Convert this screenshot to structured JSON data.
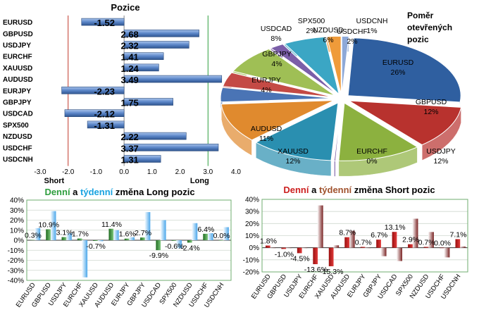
{
  "chart_data": [
    {
      "type": "bar",
      "orientation": "horizontal",
      "title": "Pozice",
      "categories": [
        "EURUSD",
        "GBPUSD",
        "USDJPY",
        "EURCHF",
        "XAUUSD",
        "AUDUSD",
        "EURJPY",
        "GBPJPY",
        "USDCAD",
        "SPX500",
        "NZDUSD",
        "USDCHF",
        "USDCNH"
      ],
      "values": [
        -1.52,
        2.68,
        2.32,
        1.41,
        1.24,
        3.49,
        -2.23,
        1.75,
        -2.12,
        -1.31,
        2.22,
        3.37,
        1.31
      ],
      "value_labels": [
        "-1.52",
        "2.68",
        "2.32",
        "1.41",
        "1.24",
        "3.49",
        "-2.23",
        "1.75",
        "-2.12",
        "-1.31",
        "2.22",
        "3.37",
        "1.31"
      ],
      "xlim": [
        -3.0,
        4.0
      ],
      "x_ticks": [
        "-3.0",
        "-2.0",
        "-1.0",
        "0.0",
        "1.0",
        "2.0",
        "3.0",
        "4.0"
      ],
      "short_label": "Short",
      "long_label": "Long",
      "colors": {
        "bar": "#5b86c8",
        "short_line": "#c0392b",
        "long_line": "#2e9e3e"
      }
    },
    {
      "type": "pie",
      "title_lines": [
        "Poměr",
        "otevřených",
        "pozic"
      ],
      "slices": [
        {
          "label": "EURUSD",
          "value": 26,
          "text": "26%",
          "color": "#2f5fa0"
        },
        {
          "label": "GBPUSD",
          "value": 12,
          "text": "12%",
          "color": "#b8322e"
        },
        {
          "label": "USDJPY",
          "value": 12,
          "text": "12%",
          "color": "#8cb13f"
        },
        {
          "label": "EURCHF",
          "value": 0,
          "text": "0%",
          "color": "#6b4c9a"
        },
        {
          "label": "XAUUSD",
          "value": 12,
          "text": "12%",
          "color": "#2a8fb0"
        },
        {
          "label": "AUDUSD",
          "value": 11,
          "text": "11%",
          "color": "#e08a2e"
        },
        {
          "label": "EURJPY",
          "value": 4,
          "text": "4%",
          "color": "#4a74b5"
        },
        {
          "label": "GBPJPY",
          "value": 4,
          "text": "4%",
          "color": "#c44a45"
        },
        {
          "label": "USDCAD",
          "value": 8,
          "text": "8%",
          "color": "#9fbf55"
        },
        {
          "label": "SPX500",
          "value": 2,
          "text": "2%",
          "color": "#7b5ea8"
        },
        {
          "label": "NZDUSD",
          "value": 6,
          "text": "6%",
          "color": "#3ba6c4"
        },
        {
          "label": "USDCHF",
          "value": 2,
          "text": "2%",
          "color": "#ef9b3a"
        },
        {
          "label": "USDCNH",
          "value": 1,
          "text": "1%",
          "color": "#8ea9d8"
        }
      ]
    },
    {
      "type": "bar",
      "title_parts": [
        {
          "text": "Denní",
          "color": "#2e9e3e"
        },
        {
          "text": " a ",
          "color": "#000000"
        },
        {
          "text": "týdenní",
          "color": "#1aa3e0"
        },
        {
          "text": " změna Long pozic",
          "color": "#000000"
        }
      ],
      "categories": [
        "EURUSD",
        "GBPUSD",
        "USDJPY",
        "EURCHF",
        "XAUUSD",
        "AUDUSD",
        "EURJPY",
        "GBPJPY",
        "USDCAD",
        "SPX500",
        "NZDUSD",
        "USDCHF",
        "USDCNH"
      ],
      "series": [
        {
          "name": "Denní",
          "values": [
            0.3,
            10.9,
            3.1,
            1.7,
            -0.7,
            11.4,
            1.6,
            2.7,
            -9.9,
            -0.6,
            -2.4,
            6.4,
            0.0
          ],
          "color": "#3a8f3a"
        },
        {
          "name": "týdenní",
          "values": [
            12,
            29,
            7,
            -37,
            -1,
            10,
            3,
            28,
            20,
            -8,
            17,
            7,
            13
          ],
          "color": "#5aaee8"
        }
      ],
      "data_labels": [
        "0.3%",
        "10.9%",
        "3.1%",
        "1.7%",
        "-0.7%",
        "11.4%",
        "1.6%",
        "2.7%",
        "-9.9%",
        "-0.6%",
        "-2.4%",
        "6.4%",
        "0.0%"
      ],
      "ylim": [
        -40,
        40
      ],
      "y_ticks": [
        "40%",
        "30%",
        "20%",
        "10%",
        "0%",
        "-10%",
        "-20%",
        "-30%",
        "-40%"
      ],
      "y_tick_values": [
        40,
        30,
        20,
        10,
        0,
        -10,
        -20,
        -30,
        -40
      ]
    },
    {
      "type": "bar",
      "title_parts": [
        {
          "text": "Denní",
          "color": "#cc1f1f"
        },
        {
          "text": " a ",
          "color": "#000000"
        },
        {
          "text": "týdenní",
          "color": "#a0522d"
        },
        {
          "text": " změna Short pozic",
          "color": "#000000"
        }
      ],
      "categories": [
        "EURUSD",
        "GBPUSD",
        "USDJPY",
        "EURCHF",
        "XAUUSD",
        "AUDUSD",
        "EURJPY",
        "GBPJPY",
        "USDCAD",
        "SPX500",
        "NZDUSD",
        "USDCHF",
        "USDCNH"
      ],
      "series": [
        {
          "name": "Denní",
          "values": [
            1.8,
            -1.0,
            -4.5,
            -13.6,
            -15.3,
            8.7,
            0.7,
            6.7,
            13.1,
            2.9,
            0.7,
            0.0,
            7.1
          ],
          "color": "#cc1f1f"
        },
        {
          "name": "týdenní",
          "values": [
            0,
            0,
            0,
            35,
            2,
            14,
            0,
            -7,
            -11,
            24,
            13,
            -8,
            1
          ],
          "color": "#8a3030"
        }
      ],
      "data_labels": [
        "1.8%",
        "-1.0%",
        "-4.5%",
        "-13.6%",
        "-15.3%",
        "8.7%",
        "0.7%",
        "6.7%",
        "13.1%",
        "2.9%",
        "0.7%",
        "0.0%",
        "7.1%"
      ],
      "ylim": [
        -20,
        40
      ],
      "y_ticks": [
        "40%",
        "30%",
        "20%",
        "10%",
        "0%",
        "-10%",
        "-20%"
      ],
      "y_tick_values": [
        40,
        30,
        20,
        10,
        0,
        -10,
        -20
      ]
    }
  ]
}
